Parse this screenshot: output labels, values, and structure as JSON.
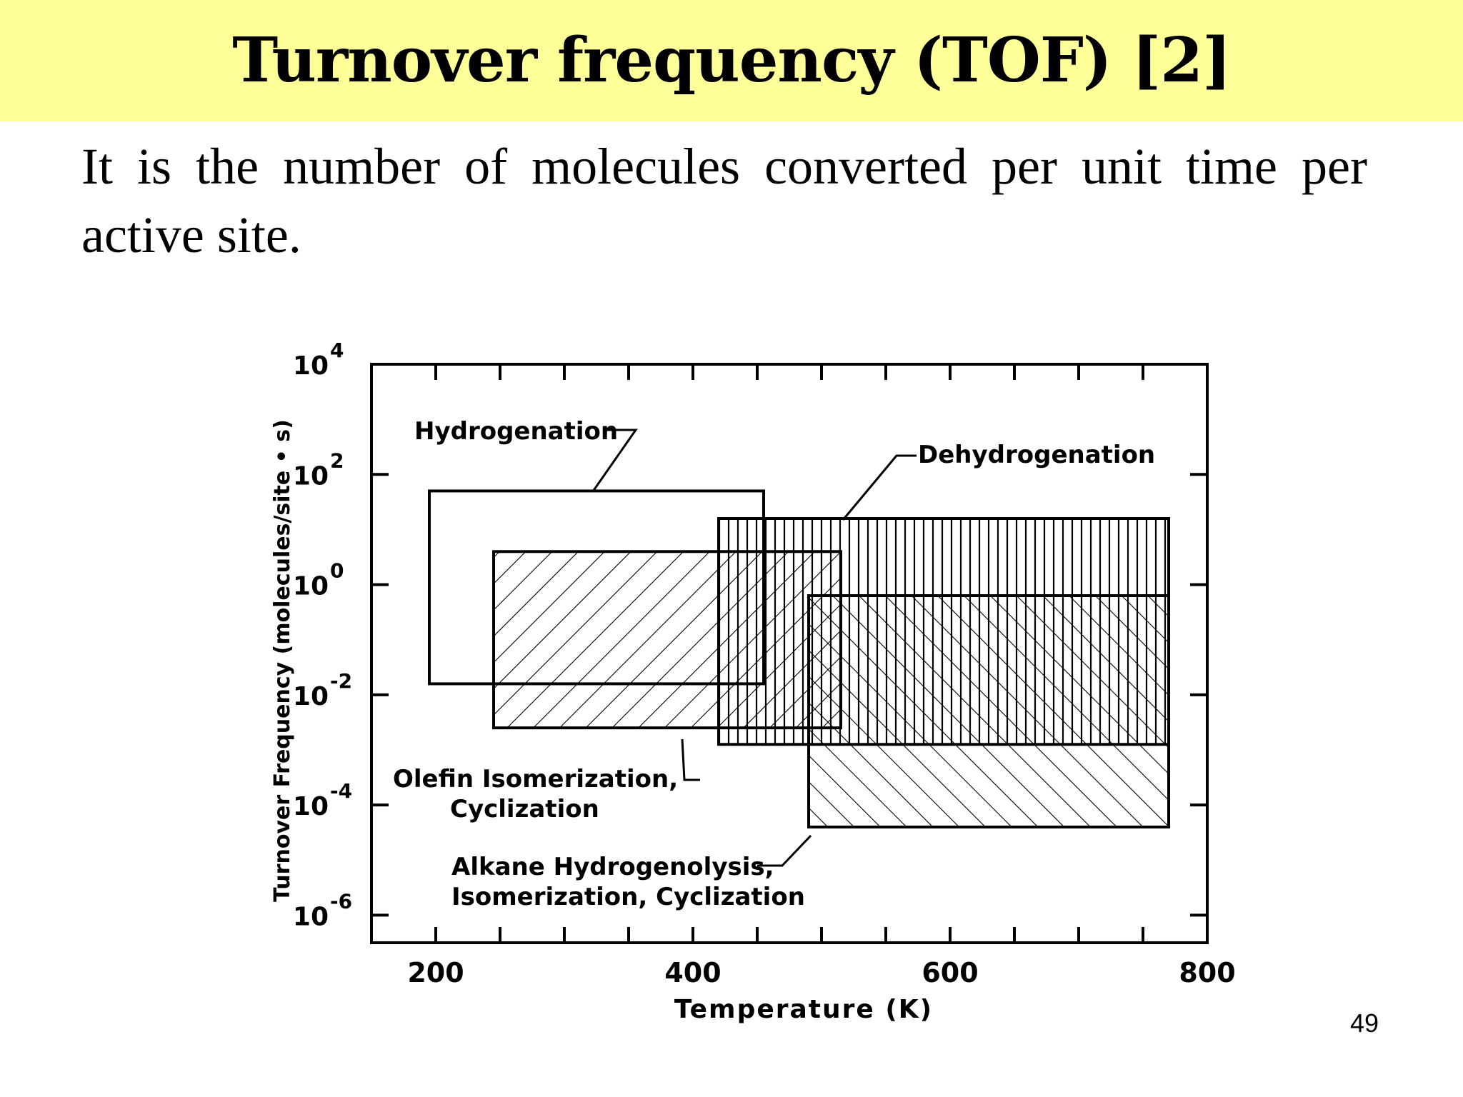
{
  "slide": {
    "title": "Turnover frequency (TOF) [2]",
    "body": "It is the number of molecules converted per unit time per active site.",
    "page_number": "49"
  },
  "colors": {
    "title_bg": "#ffff99",
    "ink": "#000000"
  },
  "chart_data": {
    "type": "area",
    "xlabel": "Temperature (K)",
    "ylabel": "Turnover Frequency (molecules/site • s)",
    "xlim": [
      150,
      800
    ],
    "ylim_log10": [
      -6.5,
      4
    ],
    "log_y": true,
    "x_tick_labels": [
      {
        "value": 200,
        "label": "200"
      },
      {
        "value": 400,
        "label": "400"
      },
      {
        "value": 600,
        "label": "600"
      },
      {
        "value": 800,
        "label": "800"
      }
    ],
    "y_tick_labels": [
      {
        "exp": 4,
        "base": "10",
        "power": "4"
      },
      {
        "exp": 2,
        "base": "10",
        "power": "2"
      },
      {
        "exp": 0,
        "base": "10",
        "power": "0"
      },
      {
        "exp": -2,
        "base": "10",
        "power": "-2"
      },
      {
        "exp": -4,
        "base": "10",
        "power": "-4"
      },
      {
        "exp": -6,
        "base": "10",
        "power": "-6"
      }
    ],
    "regions": [
      {
        "name": "Hydrogenation",
        "x_range": [
          195,
          455
        ],
        "log10_tof_range": [
          -1.8,
          1.7
        ],
        "pattern": "none",
        "label_lines": [
          "Hydrogenation"
        ]
      },
      {
        "name": "Olefin Isomerization, Cyclization",
        "x_range": [
          245,
          515
        ],
        "log10_tof_range": [
          -2.6,
          0.6
        ],
        "pattern": "diagonal-up",
        "label_lines": [
          "Olefin Isomerization,",
          "Cyclization"
        ]
      },
      {
        "name": "Dehydrogenation",
        "x_range": [
          420,
          770
        ],
        "log10_tof_range": [
          -2.9,
          1.2
        ],
        "pattern": "vertical",
        "label_lines": [
          "Dehydrogenation"
        ]
      },
      {
        "name": "Alkane Hydrogenolysis, Isomerization, Cyclization",
        "x_range": [
          490,
          770
        ],
        "log10_tof_range": [
          -4.4,
          -0.2
        ],
        "pattern": "diagonal-down",
        "label_lines": [
          "Alkane Hydrogenolysis,",
          "Isomerization, Cyclization"
        ]
      }
    ]
  }
}
